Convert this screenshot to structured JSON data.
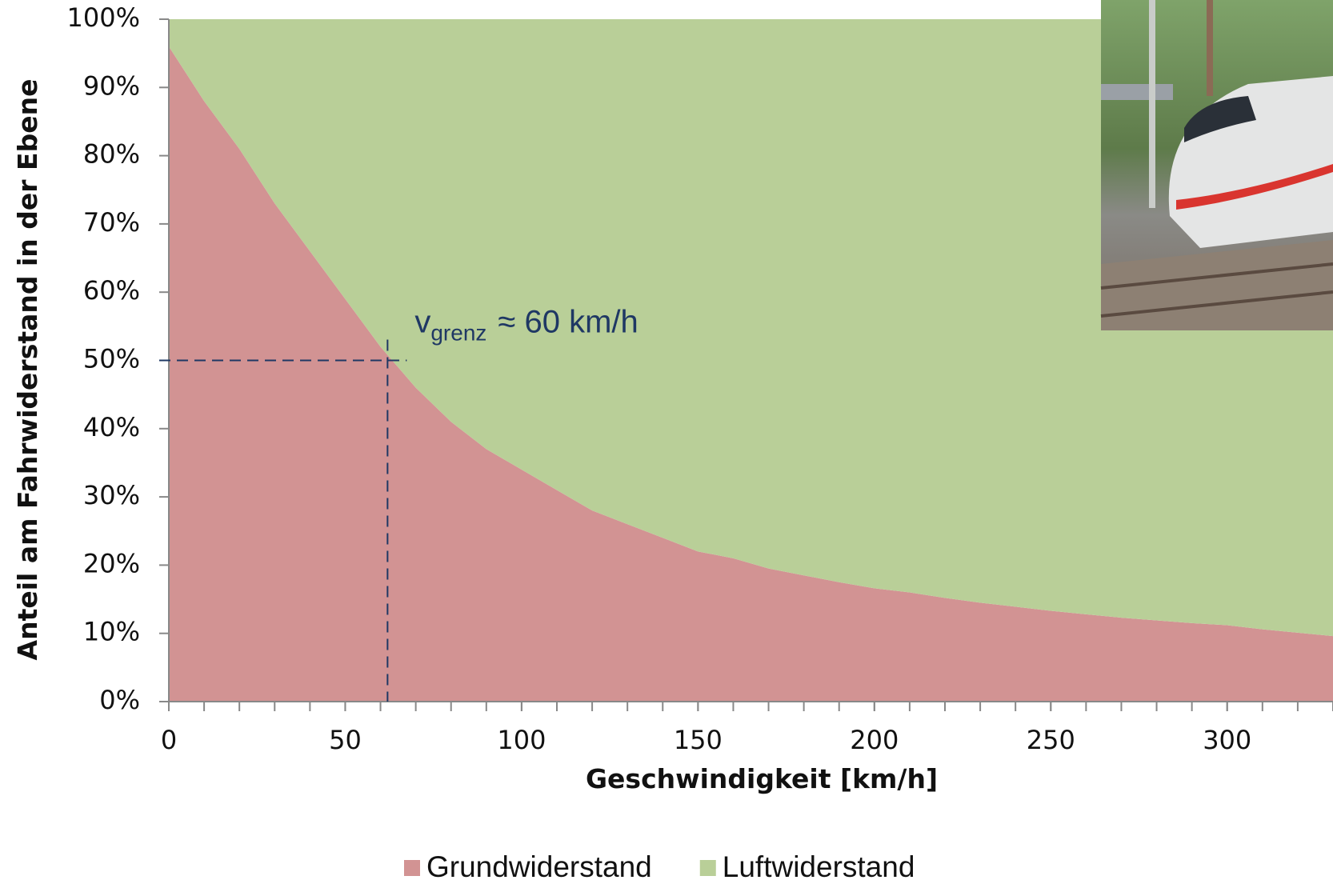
{
  "chart_data": {
    "type": "area",
    "stacked": true,
    "y_label": "Anteil am Fahrwiderstand in der Ebene",
    "x_label": "Geschwindigkeit [km/h]",
    "x": [
      0,
      10,
      20,
      30,
      40,
      50,
      60,
      70,
      80,
      90,
      100,
      110,
      120,
      130,
      140,
      150,
      160,
      170,
      180,
      190,
      200,
      210,
      220,
      230,
      240,
      250,
      260,
      270,
      280,
      290,
      300,
      310,
      320,
      330
    ],
    "series": [
      {
        "name": "Grundwiderstand",
        "color": "#d29393",
        "values": [
          96,
          88,
          81,
          73,
          66,
          59,
          52,
          46,
          41,
          37,
          34,
          31,
          28,
          26,
          24,
          22,
          21,
          19.5,
          18.5,
          17.5,
          16.6,
          16,
          15.2,
          14.5,
          13.9,
          13.3,
          12.8,
          12.3,
          11.9,
          11.5,
          11.2,
          10.6,
          10.1,
          9.6
        ]
      },
      {
        "name": "Luftwiderstand",
        "color": "#b9cf98",
        "values": [
          4,
          12,
          19,
          27,
          34,
          41,
          48,
          54,
          59,
          63,
          66,
          69,
          72,
          74,
          76,
          78,
          79,
          80.5,
          81.5,
          82.5,
          83.4,
          84,
          84.8,
          85.5,
          86.1,
          86.7,
          87.2,
          87.7,
          88.1,
          88.5,
          88.8,
          89.4,
          89.9,
          90.4
        ]
      }
    ],
    "xlim": [
      0,
      330
    ],
    "ylim": [
      0,
      100
    ],
    "xticks": [
      0,
      50,
      100,
      150,
      200,
      250,
      300
    ],
    "xticks_minor": [
      0,
      10,
      20,
      30,
      40,
      50,
      60,
      70,
      80,
      90,
      100,
      110,
      120,
      130,
      140,
      150,
      160,
      170,
      180,
      190,
      200,
      210,
      220,
      230,
      240,
      250,
      260,
      270,
      280,
      290,
      300,
      310,
      320,
      330
    ],
    "yticks": [
      {
        "value": 0,
        "label": "0%"
      },
      {
        "value": 10,
        "label": "10%"
      },
      {
        "value": 20,
        "label": "20%"
      },
      {
        "value": 30,
        "label": "30%"
      },
      {
        "value": 40,
        "label": "40%"
      },
      {
        "value": 50,
        "label": "50%"
      },
      {
        "value": 60,
        "label": "60%"
      },
      {
        "value": 70,
        "label": "70%"
      },
      {
        "value": 80,
        "label": "80%"
      },
      {
        "value": 90,
        "label": "90%"
      },
      {
        "value": 100,
        "label": "100%"
      }
    ],
    "legend": "bottom",
    "annotation": {
      "x": 62,
      "y": 50,
      "symbol": "v",
      "subscript": "grenz",
      "text": "≈ 60 km/h",
      "color": "#1f3864"
    }
  }
}
